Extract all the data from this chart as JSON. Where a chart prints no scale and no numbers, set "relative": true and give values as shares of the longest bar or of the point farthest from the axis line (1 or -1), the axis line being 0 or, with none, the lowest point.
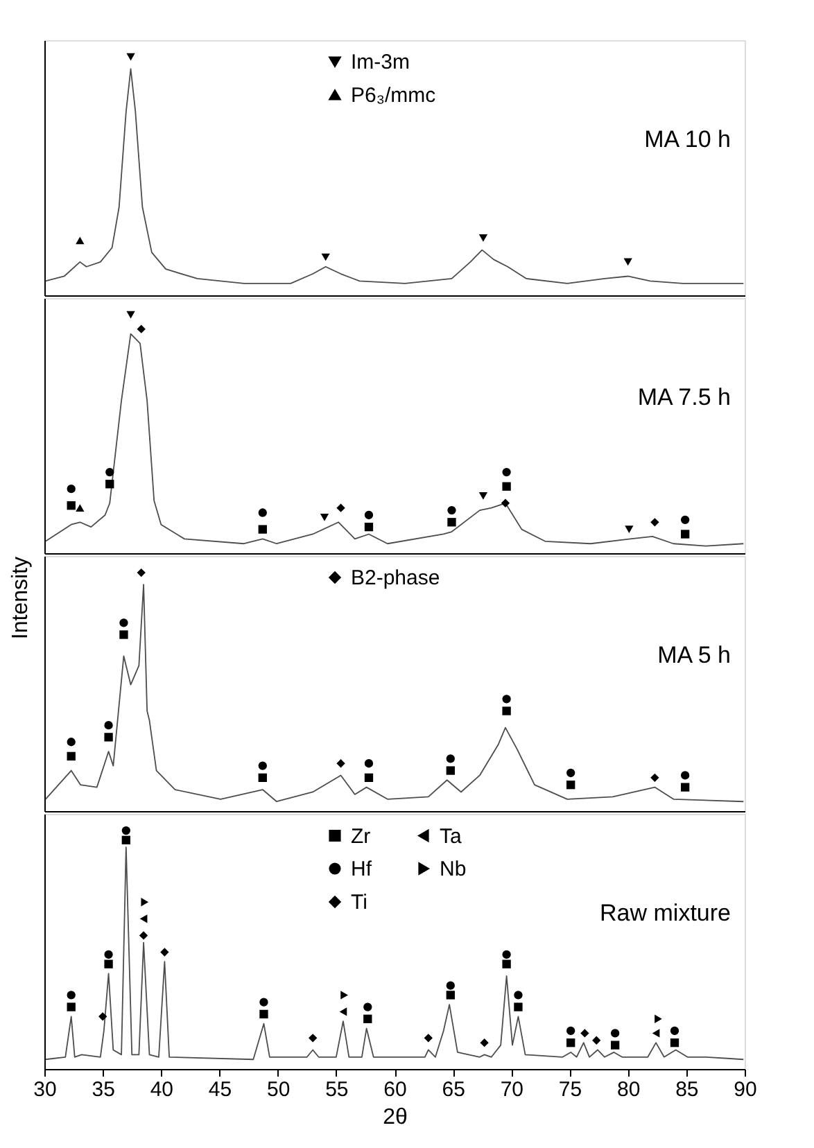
{
  "chart_data": [
    {
      "type": "line",
      "relative": true,
      "xlim": [
        30,
        90
      ],
      "tick_labels": false,
      "legend": "top",
      "annotations": [
        "MA 10 h"
      ],
      "series": [
        {
          "type": "line",
          "color": "#4d4d4d",
          "x": [
            30.1,
            31.7,
            33.05,
            33.6,
            34.8,
            35.8,
            36.4,
            37.0,
            37.4,
            37.8,
            38.4,
            39.2,
            40.4,
            43.1,
            47.1,
            51.1,
            53.0,
            54.1,
            55.4,
            57.0,
            60.9,
            64.9,
            66.5,
            67.5,
            68.5,
            69.7,
            71.3,
            74.8,
            78.0,
            80.0,
            81.9,
            84.7,
            89.9
          ],
          "values": [
            0.06,
            0.08,
            0.14,
            0.12,
            0.14,
            0.2,
            0.37,
            0.77,
            0.95,
            0.77,
            0.37,
            0.18,
            0.11,
            0.07,
            0.05,
            0.05,
            0.09,
            0.12,
            0.09,
            0.06,
            0.05,
            0.07,
            0.14,
            0.19,
            0.15,
            0.12,
            0.07,
            0.05,
            0.07,
            0.08,
            0.06,
            0.05,
            0.05
          ]
        },
        {
          "type": "scatter",
          "name": "Im-3m",
          "color": "#000000",
          "marker": "triangle-down",
          "x": [
            37.4,
            54.1,
            67.6,
            80.0
          ],
          "values": [
            1.0,
            0.16,
            0.24,
            0.14
          ]
        },
        {
          "type": "scatter",
          "name": "P6₃/mmc",
          "color": "#000000",
          "marker": "triangle",
          "x": [
            33.05
          ],
          "values": [
            0.23
          ]
        }
      ]
    },
    {
      "type": "line",
      "relative": true,
      "xlim": [
        30,
        90
      ],
      "tick_labels": false,
      "annotations": [
        "MA 7.5 h"
      ],
      "series": [
        {
          "type": "line",
          "color": "#4d4d4d",
          "x": [
            30.1,
            32.3,
            33.05,
            34.0,
            35.2,
            35.6,
            36.6,
            37.4,
            38.2,
            38.8,
            39.4,
            40.0,
            42.0,
            47.1,
            48.7,
            49.9,
            53.0,
            55.2,
            56.6,
            57.8,
            59.4,
            64.2,
            64.9,
            67.3,
            68.3,
            69.5,
            70.9,
            72.9,
            76.8,
            80.2,
            82.1,
            83.9,
            86.7,
            89.9
          ],
          "values": [
            0.05,
            0.12,
            0.13,
            0.11,
            0.16,
            0.21,
            0.64,
            0.92,
            0.88,
            0.64,
            0.22,
            0.12,
            0.06,
            0.04,
            0.06,
            0.04,
            0.08,
            0.13,
            0.06,
            0.08,
            0.04,
            0.08,
            0.09,
            0.18,
            0.19,
            0.21,
            0.1,
            0.05,
            0.04,
            0.06,
            0.07,
            0.04,
            0.03,
            0.04
          ]
        },
        {
          "type": "scatter",
          "color": "#000000",
          "marker": "square",
          "x": [
            32.3,
            35.6,
            48.7,
            57.8,
            64.9,
            69.6,
            84.9
          ],
          "values": [
            0.2,
            0.29,
            0.1,
            0.11,
            0.13,
            0.28,
            0.08
          ]
        },
        {
          "type": "scatter",
          "color": "#000000",
          "marker": "circle",
          "x": [
            32.3,
            35.6,
            48.7,
            57.8,
            64.9,
            69.6,
            84.9
          ],
          "values": [
            0.27,
            0.34,
            0.17,
            0.16,
            0.18,
            0.34,
            0.14
          ]
        },
        {
          "type": "scatter",
          "color": "#000000",
          "marker": "triangle-down",
          "x": [
            37.4,
            54.0,
            67.6,
            80.1
          ],
          "values": [
            1.0,
            0.15,
            0.24,
            0.1
          ]
        },
        {
          "type": "scatter",
          "color": "#000000",
          "marker": "triangle",
          "x": [
            33.05
          ],
          "values": [
            0.19
          ]
        },
        {
          "type": "scatter",
          "color": "#000000",
          "marker": "diamond",
          "x": [
            38.3,
            55.4,
            69.5,
            82.3
          ],
          "values": [
            0.94,
            0.19,
            0.21,
            0.13
          ]
        }
      ]
    },
    {
      "type": "line",
      "relative": true,
      "xlim": [
        30,
        90
      ],
      "tick_labels": false,
      "legend": "top",
      "ylabel": "Intensity",
      "annotations": [
        "MA 5 h"
      ],
      "series": [
        {
          "type": "line",
          "color": "#4d4d4d",
          "x": [
            30.1,
            32.3,
            33.1,
            34.5,
            35.5,
            35.9,
            36.8,
            37.4,
            38.1,
            38.5,
            38.8,
            39.0,
            39.6,
            41.2,
            45.1,
            48.7,
            49.9,
            53.0,
            55.4,
            56.6,
            57.6,
            59.4,
            62.9,
            64.5,
            65.7,
            67.3,
            68.9,
            69.5,
            70.5,
            72.0,
            74.8,
            78.7,
            82.3,
            83.9,
            89.9
          ],
          "values": [
            0.05,
            0.17,
            0.11,
            0.1,
            0.25,
            0.19,
            0.65,
            0.53,
            0.61,
            0.95,
            0.42,
            0.38,
            0.17,
            0.09,
            0.05,
            0.09,
            0.04,
            0.08,
            0.15,
            0.07,
            0.1,
            0.05,
            0.06,
            0.13,
            0.08,
            0.15,
            0.28,
            0.35,
            0.26,
            0.11,
            0.05,
            0.06,
            0.1,
            0.05,
            0.04
          ]
        },
        {
          "type": "scatter",
          "color": "#000000",
          "marker": "square",
          "x": [
            32.3,
            35.5,
            36.8,
            48.7,
            57.8,
            64.8,
            69.6,
            75.1,
            84.9
          ],
          "values": [
            0.23,
            0.31,
            0.74,
            0.14,
            0.14,
            0.17,
            0.42,
            0.11,
            0.1
          ]
        },
        {
          "type": "scatter",
          "color": "#000000",
          "marker": "circle",
          "x": [
            32.3,
            35.5,
            36.8,
            48.7,
            57.8,
            64.8,
            69.6,
            75.1,
            84.9
          ],
          "values": [
            0.29,
            0.36,
            0.79,
            0.19,
            0.2,
            0.22,
            0.47,
            0.16,
            0.15
          ]
        },
        {
          "type": "scatter",
          "name": "B2-phase",
          "color": "#000000",
          "marker": "diamond",
          "x": [
            38.3,
            55.4,
            82.3
          ],
          "values": [
            1.0,
            0.2,
            0.14
          ]
        }
      ]
    },
    {
      "type": "line",
      "relative": true,
      "xlim": [
        30,
        90
      ],
      "xticks": [
        30,
        35,
        40,
        45,
        50,
        55,
        60,
        65,
        70,
        75,
        80,
        85,
        90
      ],
      "xlabel": "2θ",
      "tick_labels": "x",
      "legend": "top",
      "annotations": [
        "Raw mixture"
      ],
      "series": [
        {
          "type": "line",
          "color": "#4d4d4d",
          "x": [
            30.1,
            31.8,
            32.3,
            32.6,
            33.2,
            34.8,
            35.1,
            35.5,
            35.9,
            36.6,
            37.0,
            37.5,
            38.1,
            38.5,
            39.0,
            39.8,
            40.3,
            40.7,
            47.9,
            48.8,
            49.3,
            52.5,
            53.0,
            53.5,
            55.0,
            55.6,
            56.1,
            57.2,
            57.6,
            58.2,
            62.6,
            62.9,
            63.5,
            64.2,
            64.7,
            65.4,
            67.3,
            67.7,
            68.3,
            69.1,
            69.6,
            70.1,
            70.6,
            71.2,
            74.4,
            75.1,
            75.6,
            76.2,
            76.7,
            77.4,
            78.0,
            78.8,
            79.5,
            81.7,
            82.4,
            83.1,
            84.1,
            85.1,
            86.7,
            89.9
          ],
          "values": [
            0.04,
            0.05,
            0.22,
            0.05,
            0.06,
            0.05,
            0.16,
            0.4,
            0.08,
            0.06,
            0.93,
            0.06,
            0.06,
            0.53,
            0.06,
            0.05,
            0.45,
            0.05,
            0.04,
            0.19,
            0.05,
            0.05,
            0.08,
            0.05,
            0.05,
            0.2,
            0.05,
            0.05,
            0.17,
            0.05,
            0.05,
            0.08,
            0.05,
            0.16,
            0.27,
            0.07,
            0.05,
            0.06,
            0.05,
            0.1,
            0.39,
            0.1,
            0.22,
            0.06,
            0.05,
            0.07,
            0.05,
            0.11,
            0.05,
            0.08,
            0.05,
            0.07,
            0.05,
            0.05,
            0.11,
            0.05,
            0.08,
            0.05,
            0.05,
            0.04
          ]
        },
        {
          "type": "scatter",
          "name": "Zr",
          "color": "#000000",
          "marker": "square",
          "x": [
            32.3,
            35.5,
            37.0,
            48.8,
            57.7,
            64.8,
            69.6,
            70.6,
            75.1,
            78.9,
            84.0
          ],
          "values": [
            0.26,
            0.44,
            0.96,
            0.23,
            0.21,
            0.31,
            0.44,
            0.26,
            0.11,
            0.1,
            0.11
          ]
        },
        {
          "type": "scatter",
          "name": "Hf",
          "color": "#000000",
          "marker": "circle",
          "x": [
            32.3,
            35.5,
            37.0,
            48.8,
            57.7,
            64.8,
            69.6,
            70.6,
            75.1,
            78.9,
            84.0
          ],
          "values": [
            0.31,
            0.48,
            1.0,
            0.28,
            0.26,
            0.35,
            0.48,
            0.31,
            0.16,
            0.15,
            0.16
          ]
        },
        {
          "type": "scatter",
          "name": "Ti",
          "color": "#000000",
          "marker": "diamond",
          "x": [
            35.0,
            38.5,
            40.3,
            53.0,
            62.9,
            67.7,
            76.3,
            77.3
          ],
          "values": [
            0.22,
            0.56,
            0.49,
            0.13,
            0.13,
            0.11,
            0.15,
            0.12
          ]
        },
        {
          "type": "scatter",
          "name": "Ta",
          "color": "#000000",
          "marker": "triangle-left",
          "x": [
            38.5,
            55.6,
            82.4
          ],
          "values": [
            0.63,
            0.24,
            0.15
          ]
        },
        {
          "type": "scatter",
          "name": "Nb",
          "color": "#000000",
          "marker": "triangle-right",
          "x": [
            38.6,
            55.7,
            82.6
          ],
          "values": [
            0.7,
            0.31,
            0.21
          ]
        }
      ]
    }
  ]
}
